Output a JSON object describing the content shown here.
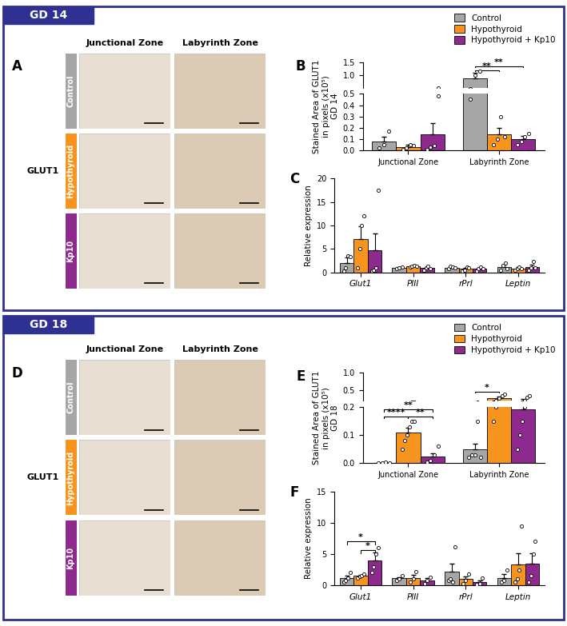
{
  "sections": [
    {
      "title": "GD 14",
      "image_panel": {
        "panel_label": "A",
        "stain": "GLUT1",
        "columns": [
          "Junctional Zone",
          "Labyrinth Zone"
        ],
        "rows": [
          {
            "label": "Control",
            "color": "#a6a6a6"
          },
          {
            "label": "Hypothyroid",
            "color": "#f7941d"
          },
          {
            "label": "Kp10",
            "color": "#8e2a8e"
          }
        ]
      }
    },
    {
      "title": "GD 18",
      "image_panel": {
        "panel_label": "D",
        "stain": "GLUT1",
        "columns": [
          "Junctional Zone",
          "Labyrinth Zone"
        ],
        "rows": [
          {
            "label": "Control",
            "color": "#a6a6a6"
          },
          {
            "label": "Hypothyroid",
            "color": "#f7941d"
          },
          {
            "label": "Kp10",
            "color": "#8e2a8e"
          }
        ]
      }
    }
  ],
  "chart_data": [
    {
      "type": "bar",
      "panel_label": "B",
      "y_label": "Stained Area of GLUT1\nin pixels (x10⁵)\nGD 14",
      "categories": [
        "Junctional Zone",
        "Labyrinth Zone"
      ],
      "broken_axis": [
        {
          "ylim": [
            0,
            0.5
          ],
          "yticks": [
            {
              "value": 0,
              "label": "0.0"
            },
            0.1,
            0.2,
            0.3,
            0.4,
            0.5
          ]
        },
        {
          "ylim": [
            0.5,
            1.5
          ],
          "yticks": [
            {
              "value": 1.0,
              "label": "1.0"
            },
            1.5
          ]
        }
      ],
      "legend": "upper right",
      "series": [
        {
          "name": "Control",
          "color": "#a6a6a6",
          "values": [
            0.08,
            0.87
          ],
          "errors": [
            0.04,
            0.22
          ],
          "points": [
            [
              0.02,
              0.05,
              0.17
            ],
            [
              0.45,
              1.0,
              1.15
            ]
          ]
        },
        {
          "name": "Hypothyroid",
          "color": "#f7941d",
          "values": [
            0.03,
            0.14
          ],
          "errors": [
            0.02,
            0.06
          ],
          "points": [
            [
              0.01,
              0.02,
              0.05,
              0.04
            ],
            [
              0.05,
              0.1,
              0.3,
              0.12
            ]
          ]
        },
        {
          "name": "Hypothyroid + Kp10",
          "color": "#8e2a8e",
          "values": [
            0.14,
            0.1
          ],
          "errors": [
            0.1,
            0.03
          ],
          "points": [
            [
              0.01,
              0.03,
              0.04,
              0.48
            ],
            [
              0.05,
              0.08,
              0.12,
              0.15
            ]
          ]
        }
      ],
      "significance": [
        {
          "category": "Labyrinth Zone",
          "from": "Control",
          "to": "Hypothyroid",
          "label": "**",
          "y": 1.2
        },
        {
          "category": "Labyrinth Zone",
          "from": "Control",
          "to": "Hypothyroid + Kp10",
          "label": "**",
          "y": 1.35
        }
      ]
    },
    {
      "type": "bar",
      "panel_label": "C",
      "y_label": "Relative expression",
      "categories": [
        "Glut1",
        "PIII",
        "rPrl",
        "Leptin"
      ],
      "ylim": [
        0,
        20
      ],
      "yticks": [
        0,
        5,
        10,
        15,
        20
      ],
      "series": [
        {
          "name": "Control",
          "color": "#a6a6a6",
          "values": [
            2.0,
            1.0,
            1.0,
            1.2
          ],
          "errors": [
            1.2,
            0.2,
            0.3,
            0.5
          ],
          "points": [
            [
              0.3,
              1.0,
              3.5,
              3.3
            ],
            [
              0.8,
              1.0,
              1.2
            ],
            [
              0.7,
              1.3,
              1.1,
              0.9
            ],
            [
              0.5,
              1.5,
              2.0,
              0.8
            ]
          ]
        },
        {
          "name": "Hypothyroid",
          "color": "#f7941d",
          "values": [
            7.0,
            1.3,
            0.7,
            0.8
          ],
          "errors": [
            2.8,
            0.2,
            0.3,
            0.3
          ],
          "points": [
            [
              1.0,
              5.0,
              10.0,
              12.0
            ],
            [
              1.1,
              1.3,
              1.5,
              1.3
            ],
            [
              0.2,
              0.5,
              1.2,
              0.9
            ],
            [
              0.4,
              0.8,
              1.2,
              0.8
            ]
          ]
        },
        {
          "name": "Hypothyroid + Kp10",
          "color": "#8e2a8e",
          "values": [
            4.7,
            0.9,
            0.7,
            1.2
          ],
          "errors": [
            3.5,
            0.3,
            0.2,
            0.5
          ],
          "points": [
            [
              0.2,
              0.5,
              1.0,
              17.5
            ],
            [
              0.5,
              1.0,
              1.3,
              0.8
            ],
            [
              0.3,
              0.7,
              1.1,
              0.7
            ],
            [
              0.5,
              1.0,
              2.4,
              0.9
            ]
          ]
        }
      ],
      "significance": []
    },
    {
      "type": "bar",
      "panel_label": "E",
      "y_label": "Stained Area of GLUT1\nin pixels (x10⁵)\nGD 18",
      "categories": [
        "Junctional Zone",
        "Labyrinth Zone"
      ],
      "broken_axis": [
        {
          "ylim": [
            0,
            0.2
          ],
          "yticks": [
            {
              "value": 0,
              "label": "0.0"
            },
            0.1,
            0.2
          ]
        },
        {
          "ylim": [
            0.2,
            1.0
          ],
          "yticks": [
            0.5,
            {
              "value": 1.0,
              "label": "1.0"
            }
          ]
        }
      ],
      "legend": "upper right",
      "series": [
        {
          "name": "Control",
          "color": "#a6a6a6",
          "values": [
            0.002,
            0.05
          ],
          "errors": [
            0.001,
            0.02
          ],
          "points": [
            [
              0.001,
              0.002,
              0.003,
              0.002
            ],
            [
              0.02,
              0.03,
              0.03,
              0.15,
              0.02
            ]
          ]
        },
        {
          "name": "Hypothyroid",
          "color": "#f7941d",
          "values": [
            0.11,
            0.27
          ],
          "errors": [
            0.016,
            0.05
          ],
          "points": [
            [
              0.05,
              0.08,
              0.1,
              0.13,
              0.15,
              0.15
            ],
            [
              0.15,
              0.2,
              0.28,
              0.33,
              0.39
            ]
          ]
        },
        {
          "name": "Hypothyroid + Kp10",
          "color": "#8e2a8e",
          "values": [
            0.025,
            0.19
          ],
          "errors": [
            0.01,
            0.06
          ],
          "points": [
            [
              0.005,
              0.01,
              0.03,
              0.06
            ],
            [
              0.05,
              0.1,
              0.15,
              0.2,
              0.3,
              0.35
            ]
          ]
        }
      ],
      "significance": [
        {
          "category": "Junctional Zone",
          "from": "Control",
          "to": "Hypothyroid",
          "label": "****",
          "y": 0.165
        },
        {
          "category": "Junctional Zone",
          "from": "Hypothyroid",
          "to": "Hypothyroid + Kp10",
          "label": "**",
          "y": 0.165
        },
        {
          "category": "Junctional Zone",
          "from": "Control",
          "to": "Hypothyroid + Kp10",
          "label": "**",
          "y": 0.19
        },
        {
          "category": "Labyrinth Zone",
          "from": "Control",
          "to": "Hypothyroid",
          "label": "*",
          "y": 0.45
        }
      ]
    },
    {
      "type": "bar",
      "panel_label": "F",
      "y_label": "Relative expression",
      "categories": [
        "Glut1",
        "PIII",
        "rPrl",
        "Leptin"
      ],
      "ylim": [
        0,
        15
      ],
      "yticks": [
        0,
        5,
        10,
        15
      ],
      "series": [
        {
          "name": "Control",
          "color": "#a6a6a6",
          "values": [
            1.1,
            1.1,
            2.2,
            1.2
          ],
          "errors": [
            0.4,
            0.2,
            1.3,
            0.6
          ],
          "points": [
            [
              0.5,
              0.8,
              1.2,
              2.0
            ],
            [
              0.8,
              1.0,
              1.5
            ],
            [
              0.8,
              1.0,
              0.5,
              6.2
            ],
            [
              0.5,
              0.8,
              2.5
            ]
          ]
        },
        {
          "name": "Hypothyroid",
          "color": "#f7941d",
          "values": [
            1.5,
            1.2,
            1.0,
            3.3
          ],
          "errors": [
            0.2,
            0.5,
            0.4,
            1.8
          ],
          "points": [
            [
              1.2,
              1.4,
              1.6,
              1.8
            ],
            [
              0.5,
              1.0,
              2.2
            ],
            [
              0.3,
              0.8,
              1.8
            ],
            [
              0.5,
              1.0,
              2.5,
              9.5
            ]
          ]
        },
        {
          "name": "Hypothyroid + Kp10",
          "color": "#8e2a8e",
          "values": [
            4.0,
            0.8,
            0.5,
            3.5
          ],
          "errors": [
            1.2,
            0.3,
            0.3,
            1.6
          ],
          "points": [
            [
              2.0,
              3.0,
              5.0,
              6.0
            ],
            [
              0.3,
              0.8,
              1.3
            ],
            [
              0.1,
              0.3,
              1.1
            ],
            [
              0.5,
              1.5,
              5.0,
              7.0
            ]
          ]
        }
      ],
      "significance": [
        {
          "category": "Glut1",
          "from": "Control",
          "to": "Hypothyroid + Kp10",
          "label": "*",
          "y": 7.0
        },
        {
          "category": "Glut1",
          "from": "Hypothyroid",
          "to": "Hypothyroid + Kp10",
          "label": "*",
          "y": 5.6
        }
      ]
    }
  ]
}
